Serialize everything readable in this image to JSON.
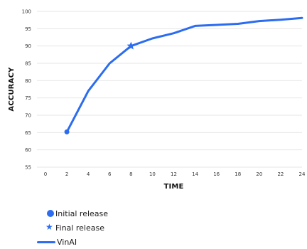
{
  "chart_data": {
    "type": "line",
    "xlabel": "TIME",
    "ylabel": "ACCURACY",
    "xlim": [
      0,
      24
    ],
    "ylim": [
      55,
      100
    ],
    "x_ticks": [
      0,
      2,
      4,
      6,
      8,
      10,
      12,
      14,
      16,
      18,
      20,
      22,
      24
    ],
    "y_ticks": [
      55,
      60,
      65,
      70,
      75,
      80,
      85,
      90,
      95,
      100
    ],
    "grid": "horizontal",
    "series": [
      {
        "name": "VinAI",
        "color": "#2b6cf0",
        "points": [
          {
            "x": 2,
            "y": 65.2
          },
          {
            "x": 4,
            "y": 77
          },
          {
            "x": 6,
            "y": 85
          },
          {
            "x": 8,
            "y": 90
          },
          {
            "x": 10,
            "y": 92.2
          },
          {
            "x": 12,
            "y": 93.7
          },
          {
            "x": 14,
            "y": 95.8
          },
          {
            "x": 16,
            "y": 96.1
          },
          {
            "x": 18,
            "y": 96.4
          },
          {
            "x": 20,
            "y": 97.2
          },
          {
            "x": 22,
            "y": 97.6
          },
          {
            "x": 24,
            "y": 98.1
          }
        ]
      }
    ],
    "markers": [
      {
        "name": "Initial release",
        "shape": "circle",
        "x": 2,
        "y": 65.2
      },
      {
        "name": "Final release",
        "shape": "star",
        "x": 8,
        "y": 90
      }
    ],
    "legend": {
      "position": "bottom-left",
      "items": [
        {
          "label": "Initial release",
          "icon": "circle-icon"
        },
        {
          "label": "Final release",
          "icon": "star-icon"
        },
        {
          "label": "VinAI",
          "icon": "line-icon"
        }
      ]
    }
  }
}
